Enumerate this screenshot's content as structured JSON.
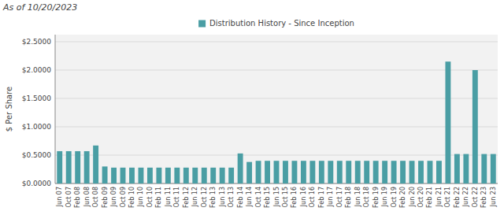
{
  "chart_data": {
    "type": "bar",
    "title": "As of 10/20/2023",
    "ylabel": "$ Per Share",
    "categories": [
      "Jun 07",
      "Oct 07",
      "Feb 08",
      "Jun 08",
      "Oct 08",
      "Feb 09",
      "Jun 09",
      "Oct 09",
      "Feb 10",
      "Jun 10",
      "Oct 10",
      "Feb 11",
      "Jun 11",
      "Oct 11",
      "Feb 12",
      "Jun 12",
      "Oct 12",
      "Feb 13",
      "Jun 13",
      "Oct 13",
      "Feb 14",
      "Jun 14",
      "Oct 14",
      "Feb 15",
      "Jun 15",
      "Oct 15",
      "Feb 16",
      "Jun 16",
      "Oct 16",
      "Feb 17",
      "Jun 17",
      "Oct 17",
      "Feb 18",
      "Jun 18",
      "Oct 18",
      "Feb 19",
      "Jun 19",
      "Oct 19",
      "Feb 20",
      "Jun 20",
      "Oct 20",
      "Feb 21",
      "Jun 21",
      "Oct 21",
      "Feb 22",
      "Jun 22",
      "Oct 22",
      "Feb 23",
      "Jun 23"
    ],
    "series": [
      {
        "name": "Distribution History - Since Inception",
        "color": "#4a9ea4",
        "values": [
          0.57,
          0.57,
          0.57,
          0.57,
          0.67,
          0.3,
          0.28,
          0.28,
          0.28,
          0.28,
          0.28,
          0.28,
          0.28,
          0.28,
          0.28,
          0.28,
          0.28,
          0.28,
          0.28,
          0.28,
          0.53,
          0.38,
          0.4,
          0.4,
          0.4,
          0.4,
          0.4,
          0.4,
          0.4,
          0.4,
          0.4,
          0.4,
          0.4,
          0.4,
          0.4,
          0.4,
          0.4,
          0.4,
          0.4,
          0.4,
          0.4,
          0.4,
          0.4,
          2.15,
          0.52,
          0.52,
          2.0,
          0.52,
          0.52
        ]
      }
    ],
    "ylim": [
      0,
      2.625
    ],
    "yticks": [
      {
        "value": 0.0,
        "label": "$0.0000"
      },
      {
        "value": 0.5,
        "label": "$0.5000"
      },
      {
        "value": 1.0,
        "label": "$1.0000"
      },
      {
        "value": 1.5,
        "label": "$1.5000"
      },
      {
        "value": 2.0,
        "label": "$2.0000"
      },
      {
        "value": 2.5,
        "label": "$2.5000"
      }
    ],
    "grid": true,
    "legend": "top"
  }
}
